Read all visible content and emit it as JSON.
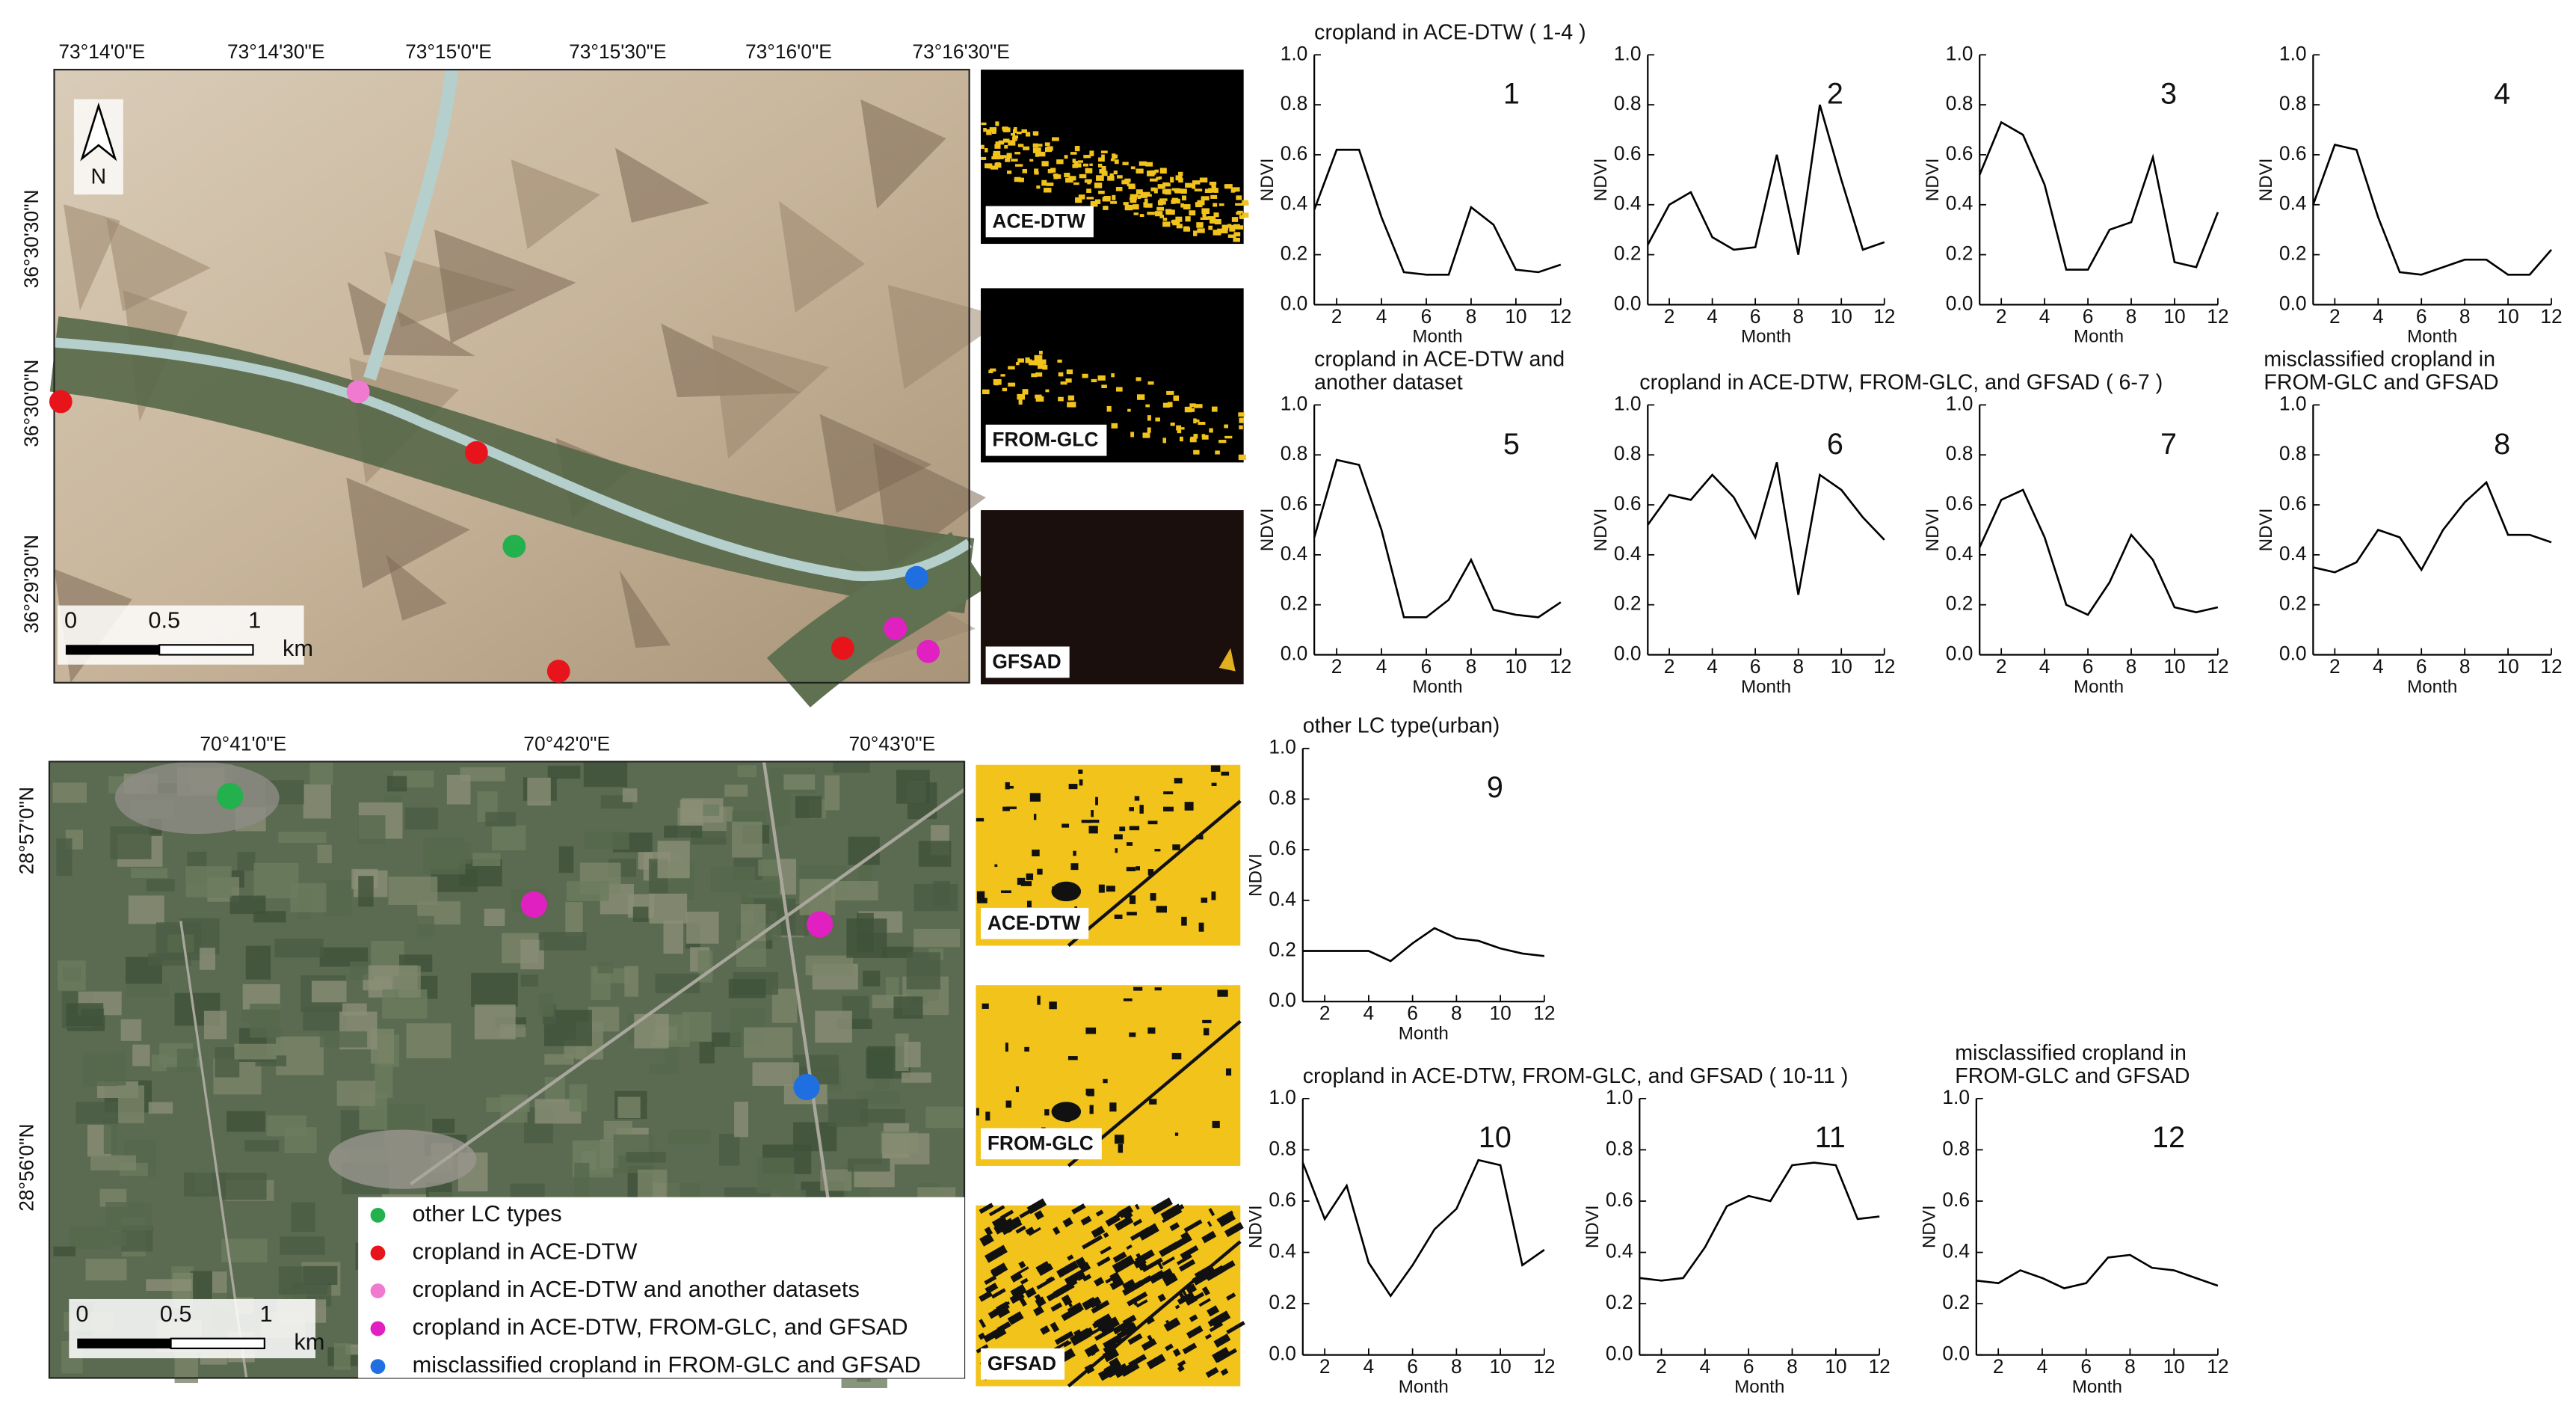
{
  "maps": [
    {
      "x_labels": [
        "73°14'0\"E",
        "73°14'30\"E",
        "73°15'0\"E",
        "73°15'30\"E",
        "73°16'0\"E",
        "73°16'30\"E"
      ],
      "y_labels": [
        "36°30'30\"N",
        "36°30'0\"N",
        "36°29'30\"N"
      ],
      "north": "N",
      "scale": [
        "0",
        "0.5",
        "1",
        "km"
      ],
      "panels": [
        "ACE-DTW",
        "FROM-GLC",
        "GFSAD"
      ]
    },
    {
      "x_labels": [
        "70°41'0\"E",
        "70°42'0\"E",
        "70°43'0\"E"
      ],
      "y_labels": [
        "28°57'0\"N",
        "28°56'0\"N"
      ],
      "scale": [
        "0",
        "0.5",
        "1",
        "km"
      ],
      "panels": [
        "ACE-DTW",
        "FROM-GLC",
        "GFSAD"
      ]
    }
  ],
  "legend": [
    {
      "label": "other LC types",
      "color": "#22b14c"
    },
    {
      "label": "cropland in ACE-DTW",
      "color": "#e8141c"
    },
    {
      "label": "cropland in ACE-DTW and another datasets",
      "color": "#f07ad0"
    },
    {
      "label": "cropland in ACE-DTW, FROM-GLC, and GFSAD",
      "color": "#e020c0"
    },
    {
      "label": "misclassified cropland in FROM-GLC and GFSAD",
      "color": "#1f6fe0"
    }
  ],
  "chart_data": [
    {
      "type": "line",
      "title": [
        "cropland in ACE-DTW ( 1-4 )"
      ],
      "annotation": "1",
      "x": [
        1,
        2,
        3,
        4,
        5,
        6,
        7,
        8,
        9,
        10,
        11,
        12
      ],
      "values": [
        0.38,
        0.62,
        0.62,
        0.35,
        0.13,
        0.12,
        0.12,
        0.39,
        0.32,
        0.14,
        0.13,
        0.16
      ],
      "color": "#000000",
      "xlim": [
        1,
        12
      ],
      "xticks": [
        2,
        4,
        6,
        8,
        10,
        12
      ],
      "ylim": [
        0,
        1
      ],
      "yticks": [
        {
          "value": 0,
          "label": "0.0"
        },
        0.2,
        0.4,
        0.6,
        0.8,
        {
          "value": 1,
          "label": "1.0"
        }
      ],
      "xlabel": "Month",
      "ylabel": "NDVI"
    },
    {
      "type": "line",
      "annotation": "2",
      "x": [
        1,
        2,
        3,
        4,
        5,
        6,
        7,
        8,
        9,
        10,
        11,
        12
      ],
      "values": [
        0.24,
        0.4,
        0.45,
        0.27,
        0.22,
        0.23,
        0.6,
        0.2,
        0.8,
        0.5,
        0.22,
        0.25
      ],
      "color": "#000000",
      "xlim": [
        1,
        12
      ],
      "xticks": [
        2,
        4,
        6,
        8,
        10,
        12
      ],
      "ylim": [
        0,
        1
      ],
      "yticks": [
        {
          "value": 0,
          "label": "0.0"
        },
        0.2,
        0.4,
        0.6,
        0.8,
        {
          "value": 1,
          "label": "1.0"
        }
      ],
      "xlabel": "Month",
      "ylabel": "NDVI"
    },
    {
      "type": "line",
      "annotation": "3",
      "x": [
        1,
        2,
        3,
        4,
        5,
        6,
        7,
        8,
        9,
        10,
        11,
        12
      ],
      "values": [
        0.52,
        0.73,
        0.68,
        0.48,
        0.14,
        0.14,
        0.3,
        0.33,
        0.59,
        0.17,
        0.15,
        0.37
      ],
      "color": "#000000",
      "xlim": [
        1,
        12
      ],
      "xticks": [
        2,
        4,
        6,
        8,
        10,
        12
      ],
      "ylim": [
        0,
        1
      ],
      "yticks": [
        {
          "value": 0,
          "label": "0.0"
        },
        0.2,
        0.4,
        0.6,
        0.8,
        {
          "value": 1,
          "label": "1.0"
        }
      ],
      "xlabel": "Month",
      "ylabel": "NDVI"
    },
    {
      "type": "line",
      "annotation": "4",
      "x": [
        1,
        2,
        3,
        4,
        5,
        6,
        7,
        8,
        9,
        10,
        11,
        12
      ],
      "values": [
        0.4,
        0.64,
        0.62,
        0.35,
        0.13,
        0.12,
        0.15,
        0.18,
        0.18,
        0.12,
        0.12,
        0.22
      ],
      "color": "#000000",
      "xlim": [
        1,
        12
      ],
      "xticks": [
        2,
        4,
        6,
        8,
        10,
        12
      ],
      "ylim": [
        0,
        1
      ],
      "yticks": [
        {
          "value": 0,
          "label": "0.0"
        },
        0.2,
        0.4,
        0.6,
        0.8,
        {
          "value": 1,
          "label": "1.0"
        }
      ],
      "xlabel": "Month",
      "ylabel": "NDVI"
    },
    {
      "type": "line",
      "title": [
        "cropland in ACE-DTW and",
        "another dataset"
      ],
      "annotation": "5",
      "x": [
        1,
        2,
        3,
        4,
        5,
        6,
        7,
        8,
        9,
        10,
        11,
        12
      ],
      "values": [
        0.47,
        0.78,
        0.76,
        0.5,
        0.15,
        0.15,
        0.22,
        0.38,
        0.18,
        0.16,
        0.15,
        0.21
      ],
      "color": "#000000",
      "xlim": [
        1,
        12
      ],
      "xticks": [
        2,
        4,
        6,
        8,
        10,
        12
      ],
      "ylim": [
        0,
        1
      ],
      "yticks": [
        {
          "value": 0,
          "label": "0.0"
        },
        0.2,
        0.4,
        0.6,
        0.8,
        {
          "value": 1,
          "label": "1.0"
        }
      ],
      "xlabel": "Month",
      "ylabel": "NDVI"
    },
    {
      "type": "line",
      "title": [
        "cropland in ACE-DTW, FROM-GLC, and GFSAD ( 6-7 )"
      ],
      "annotation": "6",
      "x": [
        1,
        2,
        3,
        4,
        5,
        6,
        7,
        8,
        9,
        10,
        11,
        12
      ],
      "values": [
        0.52,
        0.64,
        0.62,
        0.72,
        0.63,
        0.47,
        0.77,
        0.24,
        0.72,
        0.66,
        0.55,
        0.46
      ],
      "color": "#000000",
      "xlim": [
        1,
        12
      ],
      "xticks": [
        2,
        4,
        6,
        8,
        10,
        12
      ],
      "ylim": [
        0,
        1
      ],
      "yticks": [
        {
          "value": 0,
          "label": "0.0"
        },
        0.2,
        0.4,
        0.6,
        0.8,
        {
          "value": 1,
          "label": "1.0"
        }
      ],
      "xlabel": "Month",
      "ylabel": "NDVI"
    },
    {
      "type": "line",
      "annotation": "7",
      "x": [
        1,
        2,
        3,
        4,
        5,
        6,
        7,
        8,
        9,
        10,
        11,
        12
      ],
      "values": [
        0.43,
        0.62,
        0.66,
        0.47,
        0.2,
        0.16,
        0.29,
        0.48,
        0.38,
        0.19,
        0.17,
        0.19
      ],
      "color": "#000000",
      "xlim": [
        1,
        12
      ],
      "xticks": [
        2,
        4,
        6,
        8,
        10,
        12
      ],
      "ylim": [
        0,
        1
      ],
      "yticks": [
        {
          "value": 0,
          "label": "0.0"
        },
        0.2,
        0.4,
        0.6,
        0.8,
        {
          "value": 1,
          "label": "1.0"
        }
      ],
      "xlabel": "Month",
      "ylabel": "NDVI"
    },
    {
      "type": "line",
      "title": [
        "misclassified cropland in",
        "FROM-GLC and GFSAD"
      ],
      "annotation": "8",
      "x": [
        1,
        2,
        3,
        4,
        5,
        6,
        7,
        8,
        9,
        10,
        11,
        12
      ],
      "values": [
        0.35,
        0.33,
        0.37,
        0.5,
        0.47,
        0.34,
        0.5,
        0.61,
        0.69,
        0.48,
        0.48,
        0.45
      ],
      "color": "#000000",
      "xlim": [
        1,
        12
      ],
      "xticks": [
        2,
        4,
        6,
        8,
        10,
        12
      ],
      "ylim": [
        0,
        1
      ],
      "yticks": [
        {
          "value": 0,
          "label": "0.0"
        },
        0.2,
        0.4,
        0.6,
        0.8,
        {
          "value": 1,
          "label": "1.0"
        }
      ],
      "xlabel": "Month",
      "ylabel": "NDVI"
    },
    {
      "type": "line",
      "title": [
        "other LC type(urban)"
      ],
      "annotation": "9",
      "x": [
        1,
        2,
        3,
        4,
        5,
        6,
        7,
        8,
        9,
        10,
        11,
        12
      ],
      "values": [
        0.2,
        0.2,
        0.2,
        0.2,
        0.16,
        0.23,
        0.29,
        0.25,
        0.24,
        0.21,
        0.19,
        0.18
      ],
      "color": "#000000",
      "xlim": [
        1,
        12
      ],
      "xticks": [
        2,
        4,
        6,
        8,
        10,
        12
      ],
      "ylim": [
        0,
        1
      ],
      "yticks": [
        {
          "value": 0,
          "label": "0.0"
        },
        0.2,
        0.4,
        0.6,
        0.8,
        {
          "value": 1,
          "label": "1.0"
        }
      ],
      "xlabel": "Month",
      "ylabel": "NDVI"
    },
    {
      "type": "line",
      "title": [
        "cropland in ACE-DTW, FROM-GLC, and GFSAD ( 10-11 )"
      ],
      "annotation": "10",
      "x": [
        1,
        2,
        3,
        4,
        5,
        6,
        7,
        8,
        9,
        10,
        11,
        12
      ],
      "values": [
        0.75,
        0.53,
        0.66,
        0.36,
        0.23,
        0.35,
        0.49,
        0.57,
        0.76,
        0.74,
        0.35,
        0.41
      ],
      "color": "#000000",
      "xlim": [
        1,
        12
      ],
      "xticks": [
        2,
        4,
        6,
        8,
        10,
        12
      ],
      "ylim": [
        0,
        1
      ],
      "yticks": [
        {
          "value": 0,
          "label": "0.0"
        },
        0.2,
        0.4,
        0.6,
        0.8,
        {
          "value": 1,
          "label": "1.0"
        }
      ],
      "xlabel": "Month",
      "ylabel": "NDVI"
    },
    {
      "type": "line",
      "annotation": "11",
      "x": [
        1,
        2,
        3,
        4,
        5,
        6,
        7,
        8,
        9,
        10,
        11,
        12
      ],
      "values": [
        0.3,
        0.29,
        0.3,
        0.42,
        0.58,
        0.62,
        0.6,
        0.74,
        0.75,
        0.74,
        0.53,
        0.54
      ],
      "color": "#000000",
      "xlim": [
        1,
        12
      ],
      "xticks": [
        2,
        4,
        6,
        8,
        10,
        12
      ],
      "ylim": [
        0,
        1
      ],
      "yticks": [
        {
          "value": 0,
          "label": "0.0"
        },
        0.2,
        0.4,
        0.6,
        0.8,
        {
          "value": 1,
          "label": "1.0"
        }
      ],
      "xlabel": "Month",
      "ylabel": "NDVI"
    },
    {
      "type": "line",
      "title": [
        "misclassified cropland in",
        "FROM-GLC and GFSAD"
      ],
      "annotation": "12",
      "x": [
        1,
        2,
        3,
        4,
        5,
        6,
        7,
        8,
        9,
        10,
        11,
        12
      ],
      "values": [
        0.29,
        0.28,
        0.33,
        0.3,
        0.26,
        0.28,
        0.38,
        0.39,
        0.34,
        0.33,
        0.3,
        0.27
      ],
      "color": "#000000",
      "xlim": [
        1,
        12
      ],
      "xticks": [
        2,
        4,
        6,
        8,
        10,
        12
      ],
      "ylim": [
        0,
        1
      ],
      "yticks": [
        {
          "value": 0,
          "label": "0.0"
        },
        0.2,
        0.4,
        0.6,
        0.8,
        {
          "value": 1,
          "label": "1.0"
        }
      ],
      "xlabel": "Month",
      "ylabel": "NDVI"
    }
  ]
}
